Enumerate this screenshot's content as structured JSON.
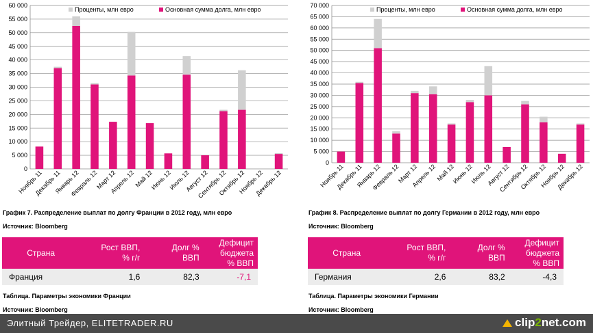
{
  "chart_data": [
    {
      "type": "bar",
      "stacked": true,
      "title": "График 7. Распределение выплат по долгу Франции в 2012 году, млн евро",
      "source": "Источник: Bloomberg",
      "categories": [
        "Ноябрь 11",
        "Декабрь 11",
        "Январь 12",
        "Февраль 12",
        "Март 12",
        "Апрель 12",
        "Май 12",
        "Июнь 12",
        "Июль 12",
        "Август 12",
        "Сентябрь 12",
        "Октябрь 12",
        "Ноябрь 12",
        "Декабрь 12"
      ],
      "series": [
        {
          "name": "Основная сумма долга, млн евро",
          "color": "#E0147A",
          "values": [
            8200,
            37000,
            52500,
            31000,
            17300,
            34300,
            16800,
            5700,
            34600,
            5000,
            21200,
            21700,
            0,
            5500
          ]
        },
        {
          "name": "Проценты, млн евро",
          "color": "#D0D0D0",
          "values": [
            0,
            500,
            3500,
            500,
            0,
            16000,
            0,
            0,
            6800,
            0,
            500,
            14500,
            0,
            300
          ]
        }
      ],
      "yticks": [
        "0",
        "5 000",
        "10 000",
        "15 000",
        "20 000",
        "25 000",
        "30 000",
        "35 000",
        "40 000",
        "45 000",
        "50 000",
        "55 000",
        "60 000"
      ],
      "ylim": [
        0,
        60000
      ],
      "legend_position": "top"
    },
    {
      "type": "bar",
      "stacked": true,
      "title": "График 8. Распределение выплат по долгу Германии в 2012 году, млн евро",
      "source": "Источник: Bloomberg",
      "categories": [
        "Ноябрь 11",
        "Декабрь 11",
        "Январь 12",
        "Февраль 12",
        "Март 12",
        "Апрель 12",
        "Май 12",
        "Июнь 12",
        "Июль 12",
        "Август 12",
        "Сентябрь 12",
        "Октябрь 12",
        "Ноябрь 12",
        "Декабрь 12"
      ],
      "series": [
        {
          "name": "Основная сумма долга, млн евро",
          "color": "#E0147A",
          "values": [
            5000,
            35500,
            51000,
            13000,
            31000,
            30500,
            17000,
            27000,
            30000,
            7000,
            26000,
            18000,
            4000,
            17000
          ]
        },
        {
          "name": "Проценты, млн евро",
          "color": "#D0D0D0",
          "values": [
            0,
            500,
            13000,
            1000,
            1000,
            3500,
            500,
            1000,
            13000,
            0,
            1500,
            2500,
            0,
            500
          ]
        }
      ],
      "yticks": [
        "0",
        "5 000",
        "10 000",
        "15 000",
        "20 000",
        "25 000",
        "30 000",
        "35 000",
        "40 000",
        "45 000",
        "50 000",
        "55 000",
        "60 000",
        "65 000",
        "70 000"
      ],
      "ylim": [
        0,
        70000
      ],
      "legend_position": "top"
    }
  ],
  "tables": [
    {
      "headers": [
        "Страна",
        "Рост ВВП,\n% г/г",
        "Долг %\nВВП",
        "Дефицит\nбюджета\n% ВВП"
      ],
      "row": {
        "country": "Франция",
        "gdp_growth": "1,6",
        "debt": "82,3",
        "deficit": "-7,1",
        "deficit_color": "#E0147A"
      },
      "caption": "Таблица. Параметры экономики Франции",
      "source": "Источник: Bloomberg"
    },
    {
      "headers": [
        "Страна",
        "Рост ВВП,\n% г/г",
        "Долг %\nВВП",
        "Дефицит\nбюджета\n% ВВП"
      ],
      "row": {
        "country": "Германия",
        "gdp_growth": "2,6",
        "debt": "83,2",
        "deficit": "-4,3",
        "deficit_color": "#000000"
      },
      "caption": "Таблица. Параметры экономики Германии",
      "source": "Источник: Bloomberg"
    }
  ],
  "footer": {
    "text": "Элитный Трейдер, ELITETRADER.RU",
    "logo_a": "clip",
    "logo_b": "2",
    "logo_c": "net.com"
  }
}
